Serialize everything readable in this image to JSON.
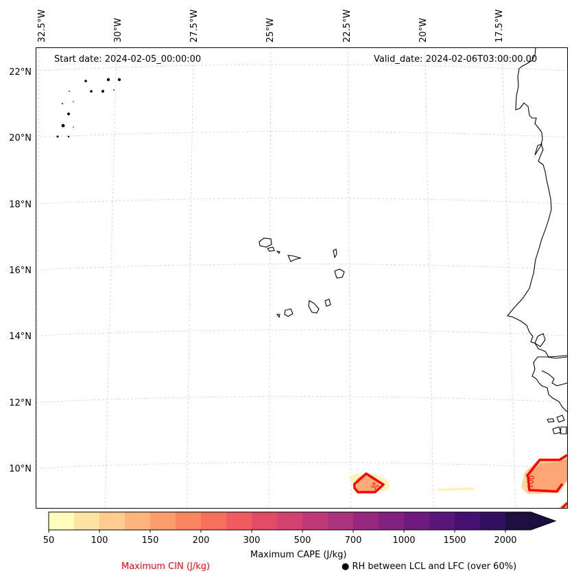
{
  "map": {
    "start_date": "Start date: 2024-02-05_00:00:00",
    "valid_date": "Valid_date: 2024-02-06T03:00:00.00",
    "lon_labels": [
      "32.5°W",
      "30°W",
      "27.5°W",
      "25°W",
      "22.5°W",
      "20°W",
      "17.5°W"
    ],
    "lat_labels": [
      "22°N",
      "20°N",
      "18°N",
      "16°N",
      "14°N",
      "12°N",
      "10°N"
    ]
  },
  "colorbar": {
    "label": "Maximum CAPE (J/kg)",
    "ticks": [
      "50",
      "100",
      "150",
      "200",
      "300",
      "500",
      "700",
      "1000",
      "1500",
      "2000"
    ],
    "colors": [
      "#fffcbc",
      "#fee4a2",
      "#fecc8e",
      "#fdb47d",
      "#fd9c6c",
      "#fb8461",
      "#f7705c",
      "#ef5b5e",
      "#e24b64",
      "#d2416f",
      "#bf3977",
      "#ab327c",
      "#96297f",
      "#83217f",
      "#6e1a7e",
      "#5a167a",
      "#451072",
      "#311061",
      "#1c0f3e"
    ]
  },
  "legend": {
    "cin_label": "Maximum CIN (J/kg)",
    "cin_color": "#ff0000",
    "rh_label": "● RH between LCL and LFC (over 60%)"
  },
  "contour_labels": {
    "c1": "50",
    "c2": "100"
  }
}
